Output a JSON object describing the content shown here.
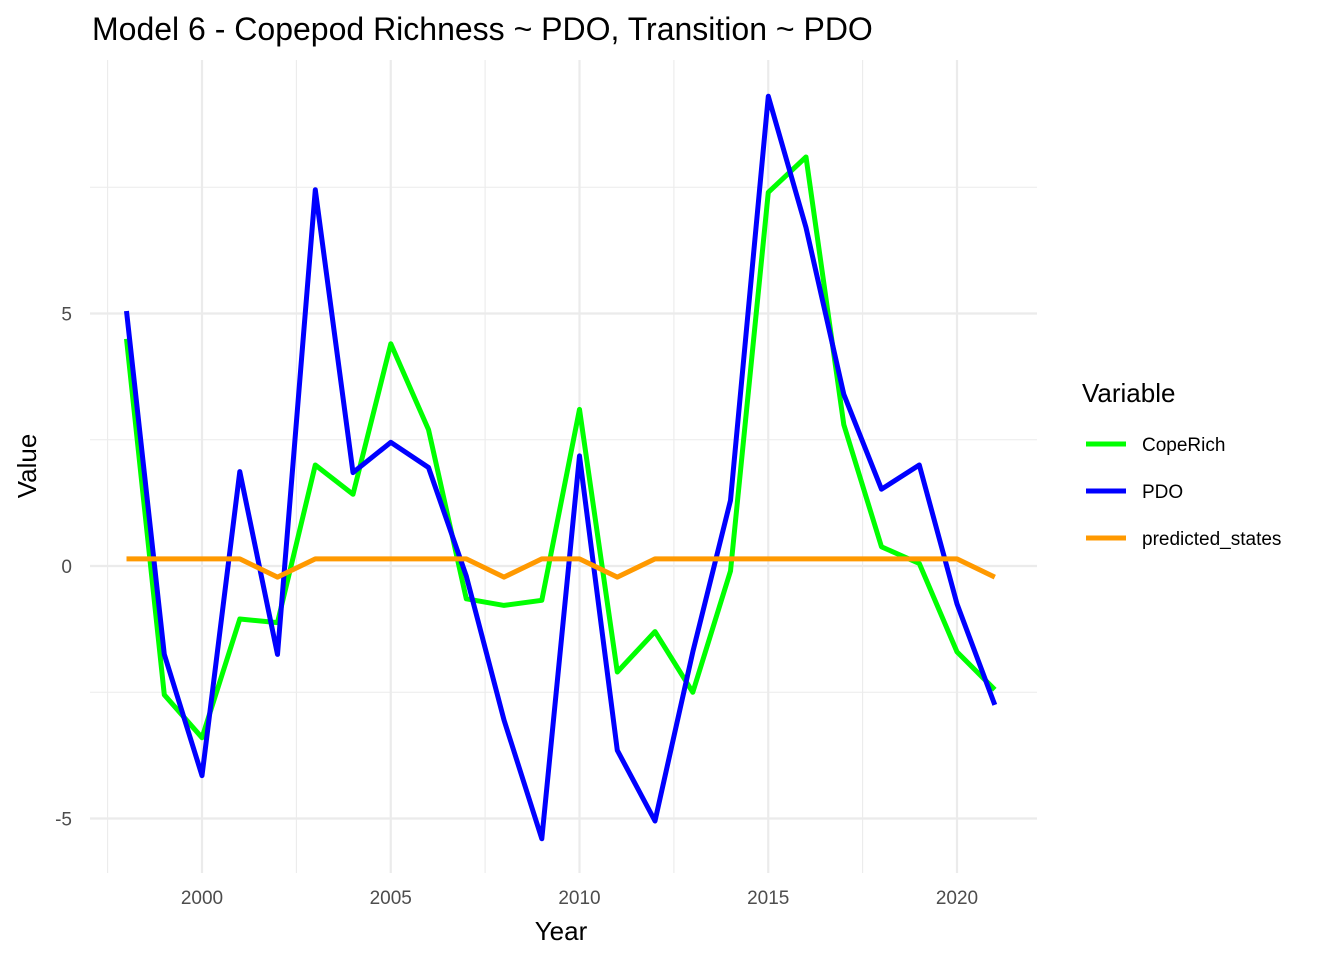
{
  "chart_data": {
    "type": "line",
    "title": "Model 6 - Copepod Richness ~ PDO, Transition ~ PDO",
    "xlabel": "Year",
    "ylabel": "Value",
    "xlim": [
      1997.5,
      2021.5
    ],
    "ylim": [
      -6.2,
      10.0
    ],
    "x_ticks": [
      2000,
      2005,
      2010,
      2015,
      2020
    ],
    "x_tick_labels": [
      "2000",
      "2005",
      "2010",
      "2015",
      "2020"
    ],
    "y_ticks": [
      -5,
      0,
      5
    ],
    "y_tick_labels": [
      "-5",
      "0",
      "5"
    ],
    "grid": true,
    "legend": {
      "title": "Variable",
      "position": "right"
    },
    "x": [
      1998,
      1999,
      2000,
      2001,
      2002,
      2003,
      2004,
      2005,
      2006,
      2007,
      2008,
      2009,
      2010,
      2011,
      2012,
      2013,
      2014,
      2015,
      2016,
      2017,
      2018,
      2019,
      2020,
      2021
    ],
    "series": [
      {
        "name": "CopeRich",
        "color": "#00ff00",
        "values": [
          4.5,
          -2.55,
          -3.4,
          -1.05,
          -1.12,
          2.0,
          1.42,
          4.4,
          2.7,
          -0.65,
          -0.78,
          -0.68,
          3.1,
          -2.1,
          -1.3,
          -2.5,
          -0.1,
          7.4,
          8.1,
          2.8,
          0.38,
          0.05,
          -1.7,
          -2.45
        ]
      },
      {
        "name": "PDO",
        "color": "#0000ff",
        "values": [
          5.05,
          -1.75,
          -4.15,
          1.87,
          -1.75,
          7.45,
          1.85,
          2.45,
          1.95,
          -0.2,
          -3.05,
          -5.4,
          2.18,
          -3.65,
          -5.05,
          -1.7,
          1.3,
          9.3,
          6.7,
          3.4,
          1.52,
          2.0,
          -0.75,
          -2.75
        ]
      },
      {
        "name": "predicted_states",
        "color": "#ff9900",
        "values": [
          0.14,
          0.14,
          0.14,
          0.14,
          -0.22,
          0.14,
          0.14,
          0.14,
          0.14,
          0.14,
          -0.22,
          0.14,
          0.14,
          -0.22,
          0.14,
          0.14,
          0.14,
          0.14,
          0.14,
          0.14,
          0.14,
          0.14,
          0.14,
          -0.22
        ]
      }
    ]
  }
}
